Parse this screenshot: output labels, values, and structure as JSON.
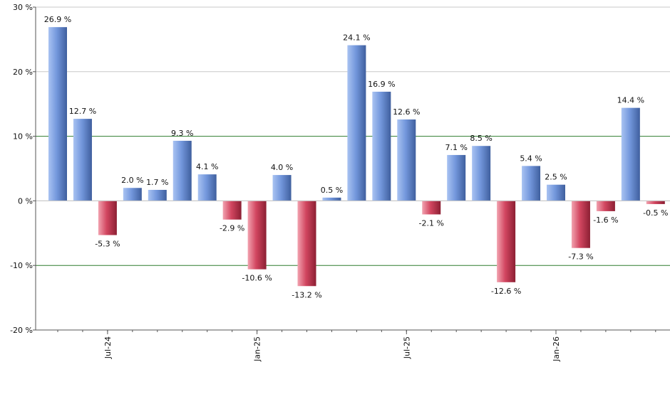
{
  "chart_data": {
    "type": "bar",
    "title": "",
    "xlabel": "",
    "ylabel": "",
    "ylim": [
      -20,
      30
    ],
    "y_ticks": [
      -20,
      -10,
      0,
      10,
      20,
      30
    ],
    "y_tick_labels": [
      "-20 %",
      "-10 %",
      "0 %",
      "10 %",
      "20 %",
      "30 %"
    ],
    "x_tick_labels": [
      {
        "label": "Jul-24",
        "index": 2
      },
      {
        "label": "Jan-25",
        "index": 8
      },
      {
        "label": "Jul-25",
        "index": 14
      },
      {
        "label": "Jan-26",
        "index": 20
      }
    ],
    "values": [
      26.9,
      12.7,
      -5.3,
      2.0,
      1.7,
      9.3,
      4.1,
      -2.9,
      -10.6,
      4.0,
      -13.2,
      0.5,
      24.1,
      16.9,
      12.6,
      -2.1,
      7.1,
      8.5,
      -12.6,
      5.4,
      2.5,
      -7.3,
      -1.6,
      14.4,
      -0.5
    ],
    "value_labels": [
      "26.9 %",
      "12.7 %",
      "-5.3 %",
      "2.0 %",
      "1.7 %",
      "9.3 %",
      "4.1 %",
      "-2.9 %",
      "-10.6 %",
      "4.0 %",
      "-13.2 %",
      "0.5 %",
      "24.1 %",
      "16.9 %",
      "12.6 %",
      "-2.1 %",
      "7.1 %",
      "8.5 %",
      "-12.6 %",
      "5.4 %",
      "2.5 %",
      "-7.3 %",
      "-1.6 %",
      "14.4 %",
      "-0.5 %"
    ],
    "reference_lines": [
      10,
      -10
    ],
    "grid": true,
    "legend": "none",
    "colors": {
      "positive": "#6f93d8",
      "negative": "#c8384f",
      "grid": "#c8c8c8",
      "reference": "#2e7d2e",
      "axis": "#555555"
    }
  }
}
